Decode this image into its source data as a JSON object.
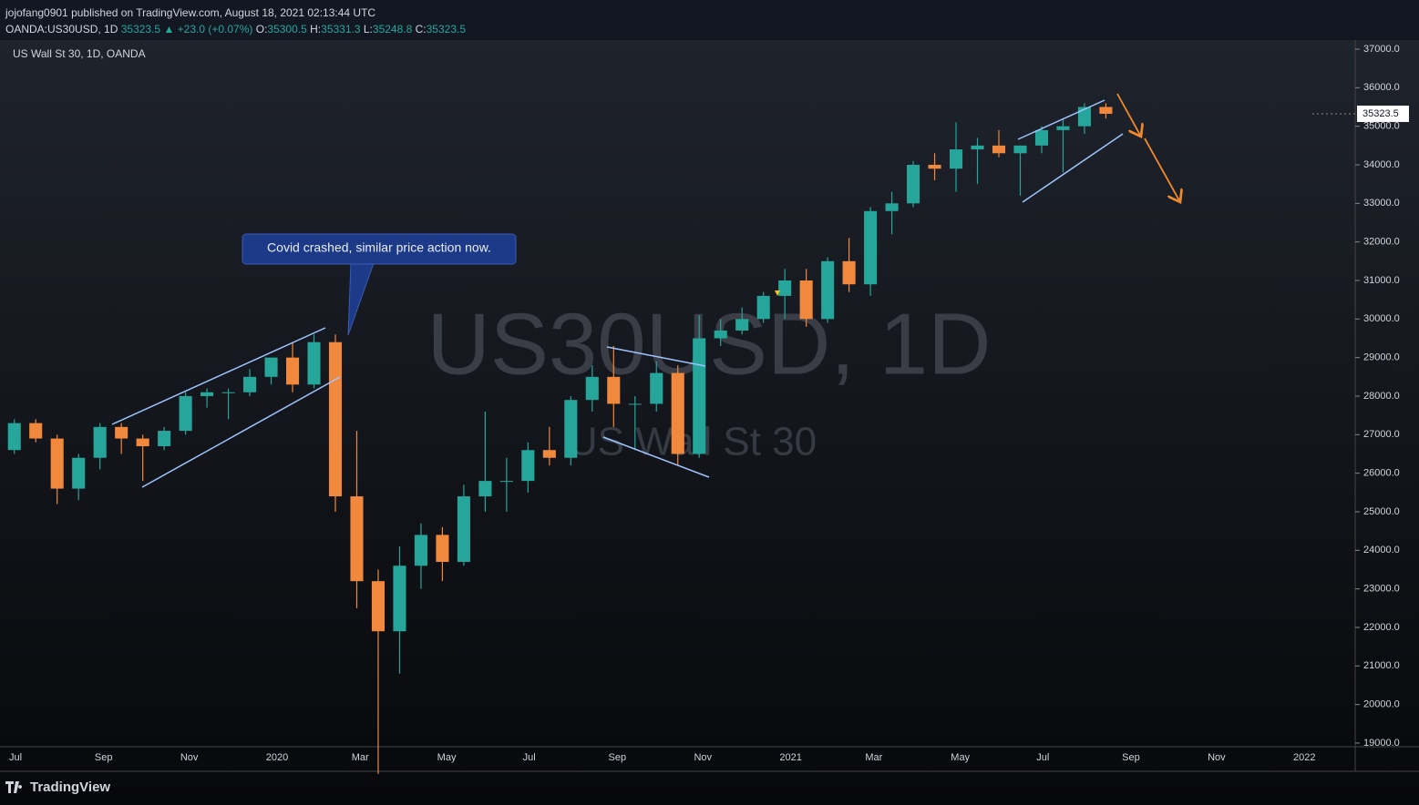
{
  "header": {
    "publisher": "jojofang0901 published on TradingView.com, August 18, 2021 02:13:44 UTC",
    "symbol": "OANDA:US30USD, 1D",
    "last": 35323.5,
    "change": "▲ +23.0 (+0.07%)",
    "o_label": "O:",
    "open": 35300.5,
    "h_label": "H:",
    "high": 35331.3,
    "l_label": "L:",
    "low": 35248.8,
    "c_label": "C:",
    "close": 35323.5
  },
  "legend": "US Wall St 30, 1D, OANDA",
  "watermark": {
    "symbol": "US30USD, 1D",
    "name": "US Wall St 30"
  },
  "callout": "Covid crashed, similar price action now.",
  "brand": "TradingView",
  "chart_data": {
    "type": "candlestick",
    "up_color": "#26a69a",
    "down_color": "#f0883e",
    "last_price": 35323.5,
    "categories": [
      "Jul",
      null,
      null,
      null,
      "Sep",
      null,
      null,
      null,
      "Nov",
      null,
      null,
      null,
      "2020",
      null,
      null,
      null,
      "Mar",
      null,
      null,
      null,
      "May",
      null,
      null,
      null,
      "Jul",
      null,
      null,
      null,
      "Sep",
      null,
      null,
      null,
      "Nov",
      null,
      null,
      null,
      "2021",
      null,
      null,
      null,
      "Mar",
      null,
      null,
      null,
      "May",
      null,
      null,
      null,
      "Jul",
      null,
      null,
      null,
      "Sep",
      null,
      null,
      null,
      "Nov",
      null,
      null,
      null,
      "2022",
      null
    ],
    "open": [
      26600,
      27300,
      26900,
      25600,
      26400,
      27200,
      26900,
      26700,
      27100,
      28000,
      28100,
      28100,
      28500,
      29000,
      28300,
      29400,
      25400,
      23200,
      21900,
      23600,
      24400,
      23700,
      25400,
      25800,
      25800,
      26600,
      26400,
      27900,
      28500,
      27800,
      27800,
      28600,
      26500,
      29500,
      29700,
      30000,
      30600,
      31000,
      30000,
      31500,
      30900,
      32800,
      33000,
      34000,
      33900,
      34400,
      34500,
      34300,
      34500,
      34900,
      35000,
      35500,
      null,
      null,
      null,
      null,
      null,
      null,
      null,
      null,
      null,
      null
    ],
    "high": [
      27400,
      27400,
      27000,
      26500,
      27300,
      27300,
      27000,
      27200,
      28100,
      28200,
      28200,
      28700,
      29000,
      29400,
      29600,
      29600,
      27100,
      23500,
      24100,
      24700,
      24600,
      25700,
      27600,
      26400,
      26800,
      27200,
      28000,
      28800,
      29300,
      28000,
      28900,
      28800,
      30100,
      30000,
      30300,
      30700,
      31300,
      31300,
      31600,
      32100,
      32900,
      33300,
      34100,
      34300,
      35100,
      34700,
      34900,
      34500,
      35000,
      35200,
      35600,
      35600,
      null,
      null,
      null,
      null,
      null,
      null,
      null,
      null,
      null,
      null
    ],
    "low": [
      26500,
      26800,
      25200,
      25300,
      26100,
      26500,
      25800,
      26600,
      27000,
      27700,
      27400,
      28000,
      28300,
      28100,
      28200,
      25000,
      22500,
      18200,
      20800,
      23000,
      23200,
      23600,
      25000,
      25000,
      25500,
      26200,
      26200,
      27600,
      27200,
      26600,
      27600,
      26200,
      26400,
      29300,
      29600,
      29900,
      30000,
      29800,
      29900,
      30700,
      30600,
      32200,
      32900,
      33600,
      33300,
      33500,
      34200,
      33200,
      34300,
      33800,
      34800,
      35200,
      null,
      null,
      null,
      null,
      null,
      null,
      null,
      null,
      null,
      null
    ],
    "close": [
      27300,
      26900,
      25600,
      26400,
      27200,
      26900,
      26700,
      27100,
      28000,
      28100,
      28100,
      28500,
      29000,
      28300,
      29400,
      25400,
      23200,
      21900,
      23600,
      24400,
      23700,
      25400,
      25800,
      25800,
      26600,
      26400,
      27900,
      28500,
      27800,
      27800,
      28600,
      26500,
      29500,
      29700,
      30000,
      30600,
      31000,
      30000,
      31500,
      30900,
      32800,
      33000,
      34000,
      33900,
      34400,
      34500,
      34300,
      34500,
      34900,
      35000,
      35500,
      35323.5,
      null,
      null,
      null,
      null,
      null,
      null,
      null,
      null,
      null,
      null
    ],
    "ylim": [
      18905,
      37236
    ],
    "yticks": [
      {
        "value": 19000,
        "label": "19000.0"
      },
      {
        "value": 20000,
        "label": "20000.0"
      },
      {
        "value": 21000,
        "label": "21000.0"
      },
      {
        "value": 22000,
        "label": "22000.0"
      },
      {
        "value": 23000,
        "label": "23000.0"
      },
      {
        "value": 24000,
        "label": "24000.0"
      },
      {
        "value": 25000,
        "label": "25000.0"
      },
      {
        "value": 26000,
        "label": "26000.0"
      },
      {
        "value": 27000,
        "label": "27000.0"
      },
      {
        "value": 28000,
        "label": "28000.0"
      },
      {
        "value": 29000,
        "label": "29000.0"
      },
      {
        "value": 30000,
        "label": "30000.0"
      },
      {
        "value": 31000,
        "label": "31000.0"
      },
      {
        "value": 32000,
        "label": "32000.0"
      },
      {
        "value": 33000,
        "label": "33000.0"
      },
      {
        "value": 34000,
        "label": "34000.0"
      },
      {
        "value": 35000,
        "label": "35000.0"
      },
      {
        "value": 36000,
        "label": "36000.0"
      },
      {
        "value": 37000,
        "label": "37000.0"
      }
    ]
  }
}
